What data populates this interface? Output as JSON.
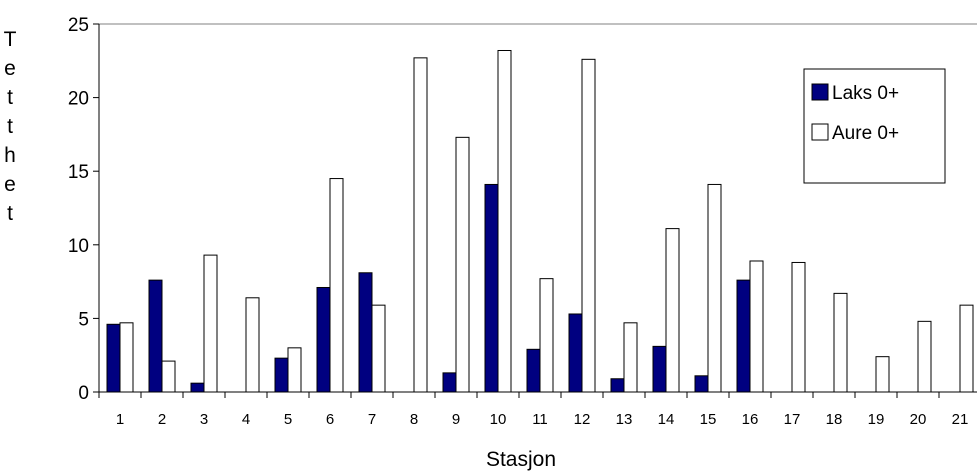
{
  "chart_data": {
    "type": "bar",
    "title": "",
    "xlabel": "Stasjon",
    "ylabel": "Tetthet",
    "ylim": [
      0,
      25
    ],
    "yticks": [
      0,
      5,
      10,
      15,
      20,
      25
    ],
    "grid": false,
    "legend_position": "top-right",
    "categories": [
      "1",
      "2",
      "3",
      "4",
      "5",
      "6",
      "7",
      "8",
      "9",
      "10",
      "11",
      "12",
      "13",
      "14",
      "15",
      "16",
      "17",
      "18",
      "19",
      "20",
      "21"
    ],
    "series": [
      {
        "name": "Laks 0+",
        "color": "#000080",
        "values": [
          4.6,
          7.6,
          0.6,
          0,
          2.3,
          7.1,
          8.1,
          0,
          1.3,
          14.1,
          2.9,
          5.3,
          0.9,
          3.1,
          1.1,
          7.6,
          0,
          0,
          0,
          0,
          0
        ]
      },
      {
        "name": "Aure 0+",
        "color": "#ffffff",
        "values": [
          4.7,
          2.1,
          9.3,
          6.4,
          3.0,
          14.5,
          5.9,
          22.7,
          17.3,
          23.2,
          7.7,
          22.6,
          4.7,
          11.1,
          14.1,
          8.9,
          8.8,
          6.7,
          2.4,
          4.8,
          5.9
        ]
      }
    ]
  }
}
